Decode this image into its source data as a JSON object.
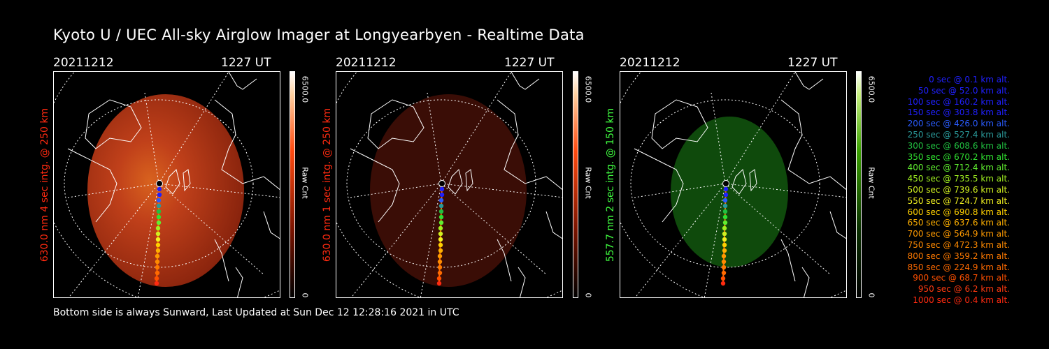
{
  "title": "Kyoto U / UEC All-sky Airglow Imager at Longyearbyen - Realtime Data",
  "footer": "Bottom side is always Sunward, Last Updated at Sun Dec 12 12:28:16 2021 in UTC",
  "colors": {
    "red_label": "#ff2a10",
    "green_label": "#40ff40",
    "panel1_emission": "#c83310",
    "panel2_emission": "#3a0d06",
    "panel3_emission": "#0f4a0c"
  },
  "panels": [
    {
      "date": "20211212",
      "time": "1227 UT",
      "label": "630.0 nm 4 sec intg. @ 250 km",
      "colorbar_max": "6500.0",
      "colorbar_min": "0",
      "colorbar_unit": "Raw Cnt",
      "colorbar_scale": "red"
    },
    {
      "date": "20211212",
      "time": "1227 UT",
      "label": "630.0 nm 1 sec intg. @ 250 km",
      "colorbar_max": "6500.0",
      "colorbar_min": "0",
      "colorbar_unit": "Raw Cnt",
      "colorbar_scale": "red"
    },
    {
      "date": "20211212",
      "time": "1227 UT",
      "label": "557.7 nm 2 sec intg. @ 150 km",
      "colorbar_max": "6500.0",
      "colorbar_min": "0",
      "colorbar_unit": "Raw Cnt",
      "colorbar_scale": "green"
    }
  ],
  "legend": [
    {
      "text": "0 sec @   0.1 km alt.",
      "color": "#2020ff"
    },
    {
      "text": "50 sec @  52.0 km alt.",
      "color": "#2020ff"
    },
    {
      "text": "100 sec @ 160.2 km alt.",
      "color": "#2020ff"
    },
    {
      "text": "150 sec @ 303.8 km alt.",
      "color": "#2020ff"
    },
    {
      "text": "200 sec @ 426.0 km alt.",
      "color": "#2a5cff"
    },
    {
      "text": "250 sec @ 527.4 km alt.",
      "color": "#2a9a9a"
    },
    {
      "text": "300 sec @ 608.6 km alt.",
      "color": "#20c040"
    },
    {
      "text": "350 sec @ 670.2 km alt.",
      "color": "#30e030"
    },
    {
      "text": "400 sec @ 712.4 km alt.",
      "color": "#60f030"
    },
    {
      "text": "450 sec @ 735.5 km alt.",
      "color": "#a0f020"
    },
    {
      "text": "500 sec @ 739.6 km alt.",
      "color": "#d0f020"
    },
    {
      "text": "550 sec @ 724.7 km alt.",
      "color": "#f0f020"
    },
    {
      "text": "600 sec @ 690.8 km alt.",
      "color": "#ffd000"
    },
    {
      "text": "650 sec @ 637.6 km alt.",
      "color": "#ffb000"
    },
    {
      "text": "700 sec @ 564.9 km alt.",
      "color": "#ff9a00"
    },
    {
      "text": "750 sec @ 472.3 km alt.",
      "color": "#ff8a00"
    },
    {
      "text": "800 sec @ 359.2 km alt.",
      "color": "#ff7a00"
    },
    {
      "text": "850 sec @ 224.9 km alt.",
      "color": "#ff6a00"
    },
    {
      "text": "900 sec @  68.7 km alt.",
      "color": "#ff5000"
    },
    {
      "text": "950 sec @   6.2 km alt.",
      "color": "#ff3a10"
    },
    {
      "text": "1000 sec @   0.4 km alt.",
      "color": "#ff2a10"
    }
  ]
}
